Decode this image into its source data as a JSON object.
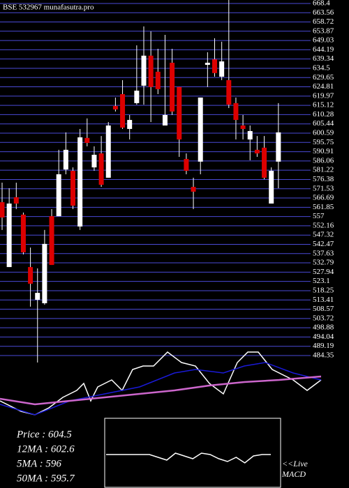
{
  "chart_data": [
    {
      "type": "candlestick",
      "title": "BSE 532967 munafasutra.pro",
      "open": [
        564.5,
        530.6,
        567.1,
        558.0,
        530.6,
        513.5,
        511.7,
        557.2,
        557.2,
        581.6,
        580.9,
        551.8,
        598.1,
        582.7,
        590.0,
        577.3,
        614.8,
        621.0,
        602.8,
        616.3,
        625.4,
        641.1,
        632.7,
        604.6,
        637.4,
        624.7,
        587.1,
        572.5,
        585.7,
        636.3,
        639.2,
        630.1,
        628.3,
        616.3,
        604.6,
        597.3,
        591.9,
        593.0,
        563.8,
        585.7
      ],
      "high": [
        574.7,
        571.8,
        574.7,
        559.1,
        540.8,
        529.9,
        550.0,
        560.9,
        591.9,
        601.0,
        582.7,
        602.8,
        608.3,
        593.7,
        599.1,
        606.4,
        619.2,
        628.3,
        610.1,
        646.5,
        656.4,
        653.8,
        644.7,
        652.0,
        644.7,
        624.7,
        590.0,
        577.3,
        619.2,
        642.9,
        650.2,
        648.4,
        670.2,
        619.2,
        610.1,
        604.6,
        599.1,
        599.1,
        582.7,
        616.3
      ],
      "low": [
        550.0,
        530.6,
        560.9,
        537.2,
        509.9,
        480.7,
        510.9,
        531.7,
        557.2,
        579.1,
        560.9,
        550.0,
        593.7,
        580.9,
        572.5,
        577.3,
        611.9,
        602.8,
        597.3,
        615.5,
        615.5,
        606.4,
        621.0,
        604.6,
        610.1,
        588.2,
        579.1,
        560.9,
        579.1,
        624.7,
        630.1,
        628.3,
        613.7,
        597.3,
        597.3,
        586.4,
        588.2,
        576.5,
        563.8,
        571.8
      ],
      "close": [
        556.5,
        563.8,
        563.8,
        538.3,
        521.9,
        517.1,
        542.7,
        531.7,
        579.1,
        591.9,
        562.7,
        598.4,
        595.5,
        589.3,
        573.6,
        604.6,
        613.0,
        603.5,
        607.5,
        622.8,
        641.1,
        624.7,
        623.6,
        610.1,
        611.9,
        597.3,
        580.9,
        570.0,
        619.2,
        637.4,
        632.0,
        638.1,
        615.5,
        607.5,
        602.8,
        601.7,
        590.0,
        577.3,
        580.9,
        601.0
      ],
      "up_color": "#ffffff",
      "down_color": "#dd0000",
      "ylim": [
        480.7,
        670.2
      ],
      "yticks": [
        668.4,
        663.56,
        658.72,
        653.87,
        649.03,
        644.19,
        639.34,
        634.5,
        629.65,
        624.81,
        619.97,
        615.12,
        610.28,
        605.44,
        600.59,
        595.75,
        590.91,
        586.06,
        581.22,
        576.38,
        571.53,
        566.69,
        561.85,
        557,
        552.16,
        547.32,
        542.47,
        537.63,
        532.79,
        527.94,
        523.1,
        518.25,
        513.41,
        508.57,
        503.72,
        498.88,
        494.04,
        489.19,
        484.35
      ],
      "grid": true
    },
    {
      "type": "line",
      "xlim": [
        0,
        50
      ],
      "ylim": [
        0,
        100
      ],
      "series": [
        {
          "name": "Price",
          "color": "#ffffff",
          "x": [
            0,
            3,
            5,
            7,
            9,
            11,
            12,
            13,
            14,
            16,
            17.5,
            19,
            20.5,
            22,
            24,
            26,
            28,
            30,
            32,
            34,
            35.5,
            37,
            39,
            42,
            44,
            46
          ],
          "values": [
            25,
            10,
            5,
            15,
            30,
            40,
            50,
            25,
            45,
            55,
            40,
            70,
            75,
            75,
            95,
            80,
            75,
            50,
            35,
            80,
            95,
            95,
            70,
            55,
            40,
            55
          ]
        },
        {
          "name": "12MA",
          "color": "#1a1ad8",
          "x": [
            0,
            5,
            10,
            15,
            20,
            25,
            28,
            32,
            35,
            38,
            42,
            46
          ],
          "values": [
            20,
            5,
            25,
            35,
            45,
            65,
            70,
            65,
            75,
            80,
            65,
            55
          ]
        },
        {
          "name": "50MA",
          "color": "#cc66cc",
          "x": [
            0,
            5,
            10,
            15,
            20,
            25,
            30,
            35,
            40,
            46
          ],
          "values": [
            28,
            20,
            25,
            30,
            35,
            40,
            47,
            52,
            55,
            60
          ]
        }
      ],
      "info": [
        "Price : 604.5",
        "12MA : 602.6",
        "5MA : 596",
        "50MA : 595.7"
      ]
    },
    {
      "type": "macd",
      "label": [
        "<<Live",
        "MACD"
      ],
      "color": "#ffffff",
      "ylim": [
        -10,
        10
      ],
      "values": [
        0,
        0,
        0,
        0,
        0,
        0,
        -2,
        -4,
        1,
        -1,
        -3,
        1,
        0,
        -3,
        -5,
        -2,
        -6,
        -1,
        0,
        0
      ]
    }
  ]
}
